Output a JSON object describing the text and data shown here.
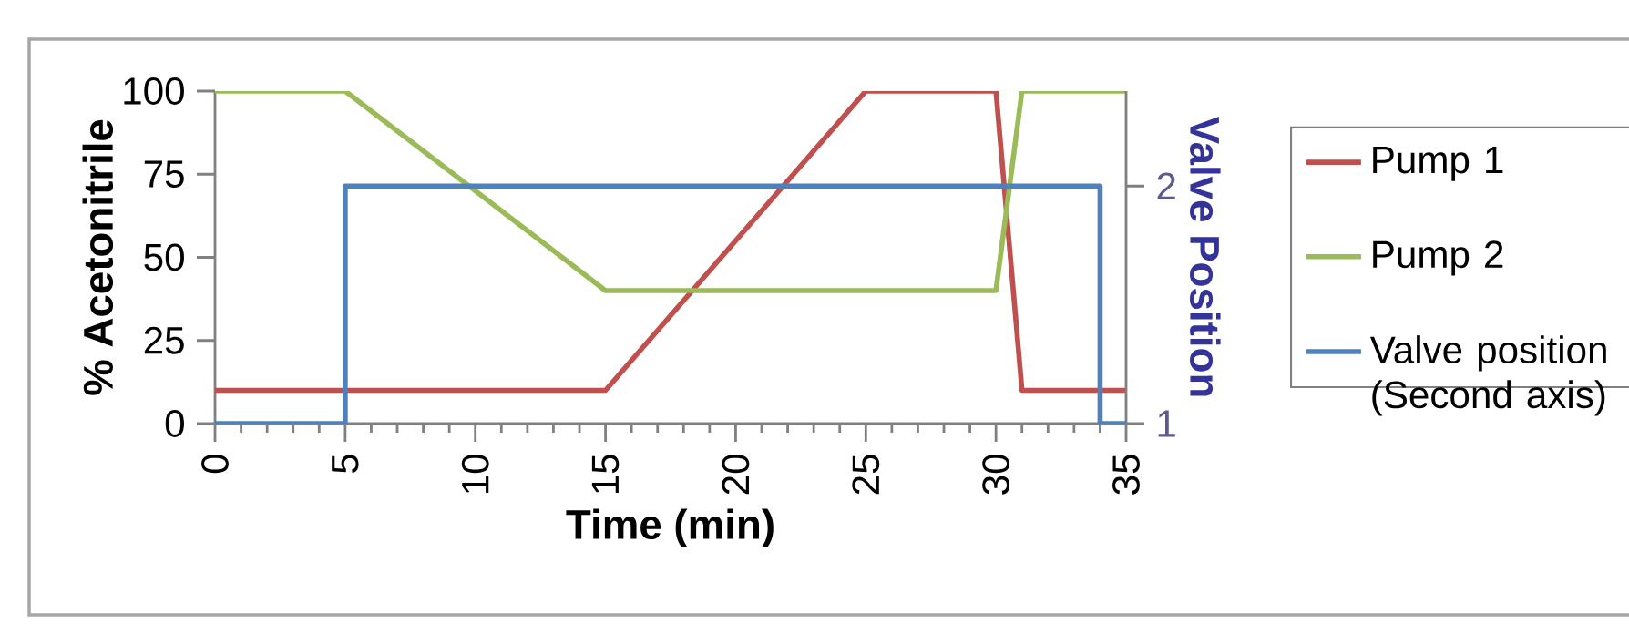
{
  "chart_data": {
    "type": "line",
    "xlabel": "Time (min)",
    "ylabel": "% Acetonitrile",
    "y2label": "Valve Position",
    "series": [
      {
        "name": "Pump 1",
        "color": "#c0504d",
        "x": [
          0,
          15,
          25,
          30,
          31,
          35
        ],
        "values": [
          10,
          10,
          100,
          100,
          10,
          10
        ]
      },
      {
        "name": "Pump 2",
        "color": "#9bbb59",
        "x": [
          0,
          5,
          15,
          30,
          31,
          35
        ],
        "values": [
          100,
          100,
          40,
          40,
          100,
          100
        ]
      },
      {
        "name": "Valve position (Second axis)",
        "color": "#4f81bd",
        "type": "step",
        "axis": "y2",
        "x": [
          0,
          5,
          34,
          35
        ],
        "values": [
          1,
          2,
          1,
          1
        ]
      }
    ],
    "xlim": [
      0,
      35
    ],
    "xticks": [
      0,
      5,
      10,
      15,
      20,
      25,
      30,
      35
    ],
    "ylim": [
      0,
      100
    ],
    "yticks": [
      0,
      25,
      50,
      75,
      100
    ],
    "y2lim": [
      1,
      2.4
    ],
    "y2ticks": [
      1,
      2
    ],
    "grid": false,
    "legend": "right",
    "marker": "none",
    "line_style": "solid"
  }
}
